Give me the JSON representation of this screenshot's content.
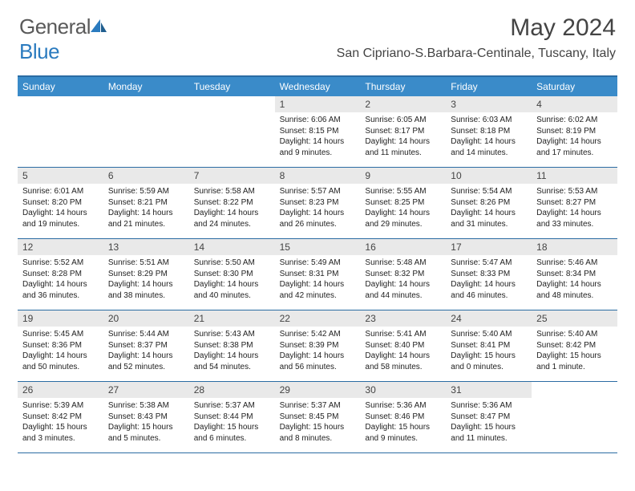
{
  "logo": {
    "part1": "General",
    "part2": "Blue"
  },
  "title": "May 2024",
  "location": "San Cipriano-S.Barbara-Centinale, Tuscany, Italy",
  "colors": {
    "header_bar": "#3a8bc9",
    "border": "#2b6ca3",
    "daynum_bg": "#e9e9e9",
    "text": "#222222",
    "logo_gray": "#5a5a5a",
    "logo_blue": "#2b7bbf"
  },
  "weekdays": [
    "Sunday",
    "Monday",
    "Tuesday",
    "Wednesday",
    "Thursday",
    "Friday",
    "Saturday"
  ],
  "weeks": [
    [
      {
        "n": "",
        "sr": "",
        "ss": "",
        "dl": ""
      },
      {
        "n": "",
        "sr": "",
        "ss": "",
        "dl": ""
      },
      {
        "n": "",
        "sr": "",
        "ss": "",
        "dl": ""
      },
      {
        "n": "1",
        "sr": "Sunrise: 6:06 AM",
        "ss": "Sunset: 8:15 PM",
        "dl": "Daylight: 14 hours and 9 minutes."
      },
      {
        "n": "2",
        "sr": "Sunrise: 6:05 AM",
        "ss": "Sunset: 8:17 PM",
        "dl": "Daylight: 14 hours and 11 minutes."
      },
      {
        "n": "3",
        "sr": "Sunrise: 6:03 AM",
        "ss": "Sunset: 8:18 PM",
        "dl": "Daylight: 14 hours and 14 minutes."
      },
      {
        "n": "4",
        "sr": "Sunrise: 6:02 AM",
        "ss": "Sunset: 8:19 PM",
        "dl": "Daylight: 14 hours and 17 minutes."
      }
    ],
    [
      {
        "n": "5",
        "sr": "Sunrise: 6:01 AM",
        "ss": "Sunset: 8:20 PM",
        "dl": "Daylight: 14 hours and 19 minutes."
      },
      {
        "n": "6",
        "sr": "Sunrise: 5:59 AM",
        "ss": "Sunset: 8:21 PM",
        "dl": "Daylight: 14 hours and 21 minutes."
      },
      {
        "n": "7",
        "sr": "Sunrise: 5:58 AM",
        "ss": "Sunset: 8:22 PM",
        "dl": "Daylight: 14 hours and 24 minutes."
      },
      {
        "n": "8",
        "sr": "Sunrise: 5:57 AM",
        "ss": "Sunset: 8:23 PM",
        "dl": "Daylight: 14 hours and 26 minutes."
      },
      {
        "n": "9",
        "sr": "Sunrise: 5:55 AM",
        "ss": "Sunset: 8:25 PM",
        "dl": "Daylight: 14 hours and 29 minutes."
      },
      {
        "n": "10",
        "sr": "Sunrise: 5:54 AM",
        "ss": "Sunset: 8:26 PM",
        "dl": "Daylight: 14 hours and 31 minutes."
      },
      {
        "n": "11",
        "sr": "Sunrise: 5:53 AM",
        "ss": "Sunset: 8:27 PM",
        "dl": "Daylight: 14 hours and 33 minutes."
      }
    ],
    [
      {
        "n": "12",
        "sr": "Sunrise: 5:52 AM",
        "ss": "Sunset: 8:28 PM",
        "dl": "Daylight: 14 hours and 36 minutes."
      },
      {
        "n": "13",
        "sr": "Sunrise: 5:51 AM",
        "ss": "Sunset: 8:29 PM",
        "dl": "Daylight: 14 hours and 38 minutes."
      },
      {
        "n": "14",
        "sr": "Sunrise: 5:50 AM",
        "ss": "Sunset: 8:30 PM",
        "dl": "Daylight: 14 hours and 40 minutes."
      },
      {
        "n": "15",
        "sr": "Sunrise: 5:49 AM",
        "ss": "Sunset: 8:31 PM",
        "dl": "Daylight: 14 hours and 42 minutes."
      },
      {
        "n": "16",
        "sr": "Sunrise: 5:48 AM",
        "ss": "Sunset: 8:32 PM",
        "dl": "Daylight: 14 hours and 44 minutes."
      },
      {
        "n": "17",
        "sr": "Sunrise: 5:47 AM",
        "ss": "Sunset: 8:33 PM",
        "dl": "Daylight: 14 hours and 46 minutes."
      },
      {
        "n": "18",
        "sr": "Sunrise: 5:46 AM",
        "ss": "Sunset: 8:34 PM",
        "dl": "Daylight: 14 hours and 48 minutes."
      }
    ],
    [
      {
        "n": "19",
        "sr": "Sunrise: 5:45 AM",
        "ss": "Sunset: 8:36 PM",
        "dl": "Daylight: 14 hours and 50 minutes."
      },
      {
        "n": "20",
        "sr": "Sunrise: 5:44 AM",
        "ss": "Sunset: 8:37 PM",
        "dl": "Daylight: 14 hours and 52 minutes."
      },
      {
        "n": "21",
        "sr": "Sunrise: 5:43 AM",
        "ss": "Sunset: 8:38 PM",
        "dl": "Daylight: 14 hours and 54 minutes."
      },
      {
        "n": "22",
        "sr": "Sunrise: 5:42 AM",
        "ss": "Sunset: 8:39 PM",
        "dl": "Daylight: 14 hours and 56 minutes."
      },
      {
        "n": "23",
        "sr": "Sunrise: 5:41 AM",
        "ss": "Sunset: 8:40 PM",
        "dl": "Daylight: 14 hours and 58 minutes."
      },
      {
        "n": "24",
        "sr": "Sunrise: 5:40 AM",
        "ss": "Sunset: 8:41 PM",
        "dl": "Daylight: 15 hours and 0 minutes."
      },
      {
        "n": "25",
        "sr": "Sunrise: 5:40 AM",
        "ss": "Sunset: 8:42 PM",
        "dl": "Daylight: 15 hours and 1 minute."
      }
    ],
    [
      {
        "n": "26",
        "sr": "Sunrise: 5:39 AM",
        "ss": "Sunset: 8:42 PM",
        "dl": "Daylight: 15 hours and 3 minutes."
      },
      {
        "n": "27",
        "sr": "Sunrise: 5:38 AM",
        "ss": "Sunset: 8:43 PM",
        "dl": "Daylight: 15 hours and 5 minutes."
      },
      {
        "n": "28",
        "sr": "Sunrise: 5:37 AM",
        "ss": "Sunset: 8:44 PM",
        "dl": "Daylight: 15 hours and 6 minutes."
      },
      {
        "n": "29",
        "sr": "Sunrise: 5:37 AM",
        "ss": "Sunset: 8:45 PM",
        "dl": "Daylight: 15 hours and 8 minutes."
      },
      {
        "n": "30",
        "sr": "Sunrise: 5:36 AM",
        "ss": "Sunset: 8:46 PM",
        "dl": "Daylight: 15 hours and 9 minutes."
      },
      {
        "n": "31",
        "sr": "Sunrise: 5:36 AM",
        "ss": "Sunset: 8:47 PM",
        "dl": "Daylight: 15 hours and 11 minutes."
      },
      {
        "n": "",
        "sr": "",
        "ss": "",
        "dl": ""
      }
    ]
  ]
}
